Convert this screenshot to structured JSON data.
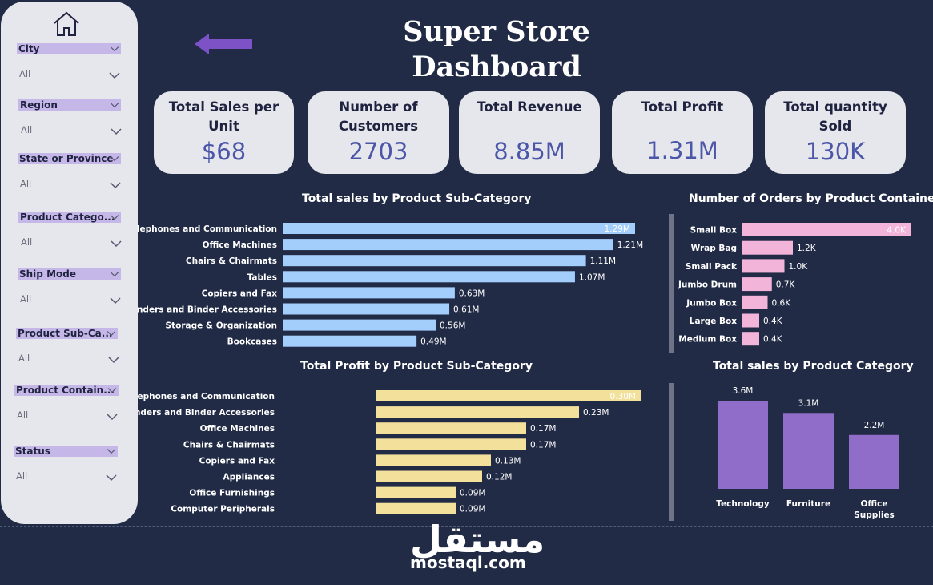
{
  "header": {
    "title_line1": "Super Store",
    "title_line2": "Dashboard"
  },
  "slicers": [
    {
      "label": "City",
      "value": "All"
    },
    {
      "label": "Region",
      "value": "All"
    },
    {
      "label": "State or Province",
      "value": "All"
    },
    {
      "label": "Product Catego...",
      "value": "All"
    },
    {
      "label": "Ship Mode",
      "value": "All"
    },
    {
      "label": "Product Sub-Ca...",
      "value": "All"
    },
    {
      "label": "Product Contain...",
      "value": "All"
    },
    {
      "label": "Status",
      "value": "All"
    }
  ],
  "kpis": [
    {
      "label": "Total Sales per Unit",
      "value": "$68"
    },
    {
      "label": "Number of Customers",
      "value": "2703"
    },
    {
      "label": "Total Revenue",
      "value": "8.85M"
    },
    {
      "label": "Total Profit",
      "value": "1.31M"
    },
    {
      "label": "Total quantity Sold",
      "value": "130K"
    }
  ],
  "colors": {
    "background": "#212b45",
    "panel": "#e6e7ec",
    "slicer_header": "#c6b7e9",
    "sales_bar": "#a3cdfb",
    "profit_bar": "#f2e09b",
    "container_bar": "#f3b4da",
    "category_bar": "#8f6dc9",
    "arrow": "#7d52c7",
    "kpi_value": "#4b56a8"
  },
  "chart_data": [
    {
      "type": "bar",
      "orientation": "horizontal",
      "title": "Total sales by Product Sub-Category",
      "categories": [
        "Telephones and Communication",
        "Office Machines",
        "Chairs & Chairmats",
        "Tables",
        "Copiers and Fax",
        "Binders and Binder Accessories",
        "Storage & Organization",
        "Bookcases"
      ],
      "values": [
        1.29,
        1.21,
        1.11,
        1.07,
        0.63,
        0.61,
        0.56,
        0.49
      ],
      "labels": [
        "1.29M",
        "1.21M",
        "1.11M",
        "1.07M",
        "0.63M",
        "0.61M",
        "0.56M",
        "0.49M"
      ]
    },
    {
      "type": "bar",
      "orientation": "horizontal",
      "title": "Number of Orders by Product Container",
      "categories": [
        "Small Box",
        "Wrap Bag",
        "Small Pack",
        "Jumbo Drum",
        "Jumbo Box",
        "Large Box",
        "Medium Box"
      ],
      "values": [
        4.0,
        1.2,
        1.0,
        0.7,
        0.6,
        0.4,
        0.4
      ],
      "labels": [
        "4.0K",
        "1.2K",
        "1.0K",
        "0.7K",
        "0.6K",
        "0.4K",
        "0.4K"
      ]
    },
    {
      "type": "bar",
      "orientation": "horizontal",
      "title": "Total Profit by Product Sub-Category",
      "categories": [
        "Telephones and Communication",
        "Binders and Binder Accessories",
        "Office Machines",
        "Chairs & Chairmats",
        "Copiers and Fax",
        "Appliances",
        "Office Furnishings",
        "Computer Peripherals"
      ],
      "values": [
        0.3,
        0.23,
        0.17,
        0.17,
        0.13,
        0.12,
        0.09,
        0.09
      ],
      "labels": [
        "0.30M",
        "0.23M",
        "0.17M",
        "0.17M",
        "0.13M",
        "0.12M",
        "0.09M",
        "0.09M"
      ]
    },
    {
      "type": "bar",
      "orientation": "vertical",
      "title": "Total sales by Product Category",
      "categories": [
        "Technology",
        "Furniture",
        "Office Supplies"
      ],
      "values": [
        3.6,
        3.1,
        2.2
      ],
      "labels": [
        "3.6M",
        "3.1M",
        "2.2M"
      ]
    }
  ],
  "watermark": {
    "logo": "مستقل",
    "url": "mostaql.com"
  }
}
